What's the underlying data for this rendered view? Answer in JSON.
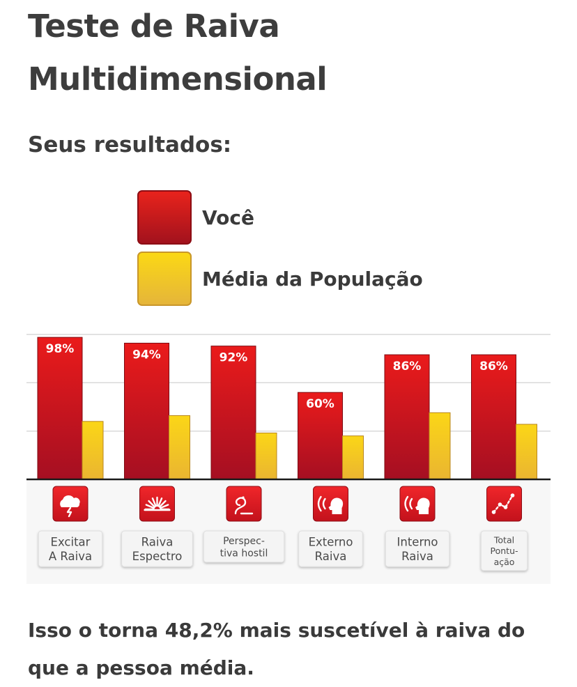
{
  "page": {
    "title": "Teste de Raiva Multidimensional",
    "subtitle": "Seus resultados:",
    "footer": "Isso o torna 48,2% mais suscetível à raiva do que a pessoa média."
  },
  "legend": [
    {
      "label": "Você",
      "color": "#d4161b"
    },
    {
      "label": "Média da População",
      "color": "#f4c622"
    }
  ],
  "chart_data": {
    "type": "bar",
    "title": "",
    "xlabel": "",
    "ylabel": "",
    "ylim": [
      0,
      100
    ],
    "grid": true,
    "categories": [
      {
        "label": "Excitar\nA Raiva",
        "icon": "storm-cloud-icon"
      },
      {
        "label": "Raiva\nEspectro",
        "icon": "spectrum-fan-icon"
      },
      {
        "label": "Perspec-\ntiva hostil",
        "icon": "cobra-icon"
      },
      {
        "label": "Externo\nRaiva",
        "icon": "shouting-head-icon"
      },
      {
        "label": "Interno\nRaiva",
        "icon": "inner-shout-head-icon"
      },
      {
        "label": "Total\nPontu-\nação",
        "icon": "scatter-trend-icon"
      }
    ],
    "series": [
      {
        "name": "Você",
        "values": [
          98,
          94,
          92,
          60,
          86,
          86
        ],
        "labels": [
          "98%",
          "94%",
          "92%",
          "60%",
          "86%",
          "86%"
        ]
      },
      {
        "name": "Média da População",
        "values": [
          40,
          44,
          32,
          30,
          46,
          38
        ]
      }
    ]
  }
}
